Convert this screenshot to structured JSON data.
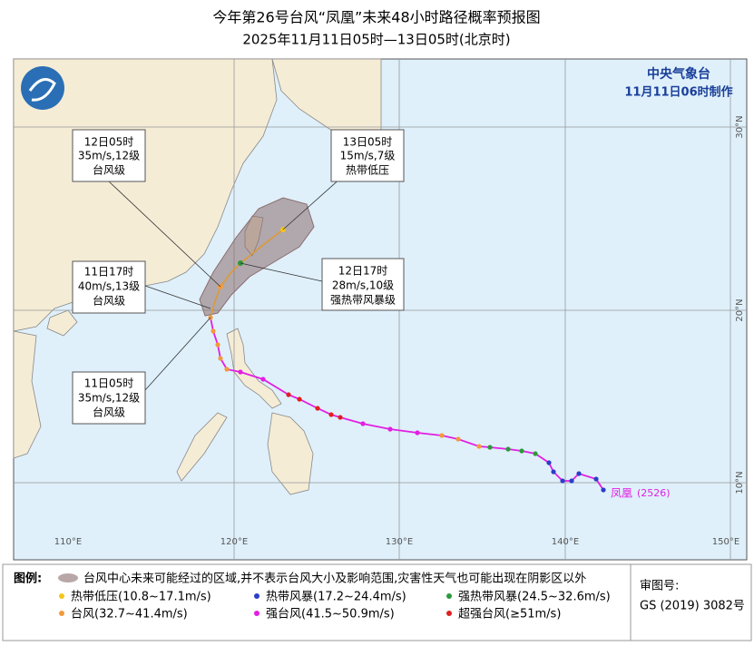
{
  "header": {
    "title": "今年第26号台风“凤凰”未来48小时路径概率预报图",
    "subtitle": "2025年11月11日05时—13日05时(北京时)"
  },
  "map": {
    "agency": "中央气象台",
    "issued": "11月11日06时制作",
    "lon_labels": [
      "110°E",
      "120°E",
      "130°E",
      "140°E",
      "150°E"
    ],
    "lat_labels": [
      "30°N",
      "20°N",
      "10°N"
    ],
    "storm_label": "凤凰",
    "storm_id": "(2526)",
    "callouts": [
      {
        "time": "12日05时",
        "wind": "35m/s,12级",
        "grade": "台风级"
      },
      {
        "time": "13日05时",
        "wind": "15m/s,7级",
        "grade": "热带低压"
      },
      {
        "time": "11日17时",
        "wind": "40m/s,13级",
        "grade": "台风级"
      },
      {
        "time": "12日17时",
        "wind": "28m/s,10级",
        "grade": "强热带风暴级"
      },
      {
        "time": "11日05时",
        "wind": "35m/s,12级",
        "grade": "台风级"
      }
    ]
  },
  "legend": {
    "title": "图例:",
    "cone": "台风中心未来可能经过的区域,并不表示台风大小及影响范围,灾害性天气也可能出现在阴影区以外",
    "items": [
      "热带低压(10.8~17.1m/s)",
      "热带风暴(17.2~24.4m/s)",
      "强热带风暴(24.5~32.6m/s)",
      "台风(32.7~41.4m/s)",
      "强台风(41.5~50.9m/s)",
      "超强台风(≥51m/s)"
    ]
  },
  "approval": {
    "label": "审图号:",
    "number": "GS (2019) 3082号"
  }
}
